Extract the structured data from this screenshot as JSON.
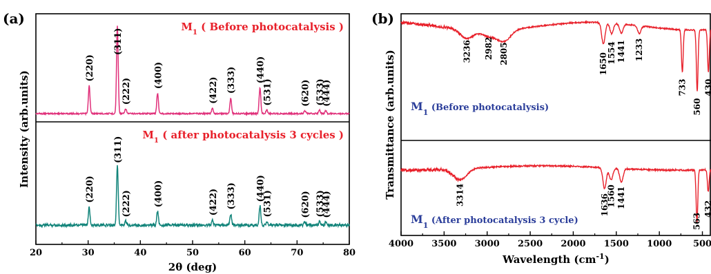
{
  "chart_data": [
    {
      "type": "line",
      "panel_label": "(a)",
      "xlabel": "2θ (deg)",
      "ylabel": "Intensity (arb.units)",
      "xlim": [
        20,
        80
      ],
      "xticks": [
        "20",
        "30",
        "40",
        "50",
        "60",
        "70",
        "80"
      ],
      "grid": false,
      "series": [
        {
          "name": "M1 ( Before photocatalysis )",
          "label_main": "M",
          "label_sub": "1",
          "label_rest": " ( Before photocatalysis )",
          "color": "#e0307a",
          "peaks": [
            {
              "x": 30.2,
              "label": "(220)",
              "height": 0.3
            },
            {
              "x": 35.6,
              "label": "(311)",
              "height": 0.95
            },
            {
              "x": 37.2,
              "label": "(222)",
              "height": 0.05
            },
            {
              "x": 43.3,
              "label": "(400)",
              "height": 0.22
            },
            {
              "x": 53.8,
              "label": "(422)",
              "height": 0.06
            },
            {
              "x": 57.3,
              "label": "(333)",
              "height": 0.17
            },
            {
              "x": 62.9,
              "label": "(440)",
              "height": 0.28
            },
            {
              "x": 64.2,
              "label": "(531)",
              "height": 0.04
            },
            {
              "x": 71.5,
              "label": "(620)",
              "height": 0.03
            },
            {
              "x": 74.3,
              "label": "(533)",
              "height": 0.04
            },
            {
              "x": 75.5,
              "label": "(444)",
              "height": 0.03
            }
          ]
        },
        {
          "name": "M1 ( after photocatalysis 3 cycles )",
          "label_main": "M",
          "label_sub": "1",
          "label_rest": " ( after photocatalysis 3 cycles )",
          "color": "#12847a",
          "peaks": [
            {
              "x": 30.2,
              "label": "(220)",
              "height": 0.24
            },
            {
              "x": 35.6,
              "label": "(311)",
              "height": 0.8
            },
            {
              "x": 37.2,
              "label": "(222)",
              "height": 0.05
            },
            {
              "x": 43.3,
              "label": "(400)",
              "height": 0.18
            },
            {
              "x": 53.8,
              "label": "(422)",
              "height": 0.07
            },
            {
              "x": 57.3,
              "label": "(333)",
              "height": 0.15
            },
            {
              "x": 62.9,
              "label": "(440)",
              "height": 0.25
            },
            {
              "x": 64.2,
              "label": "(531)",
              "height": 0.05
            },
            {
              "x": 71.5,
              "label": "(620)",
              "height": 0.04
            },
            {
              "x": 74.3,
              "label": "(533)",
              "height": 0.05
            },
            {
              "x": 75.5,
              "label": "(444)",
              "height": 0.04
            }
          ]
        }
      ]
    },
    {
      "type": "line",
      "panel_label": "(b)",
      "xlabel_main": "Wavelength (cm",
      "xlabel_sup": "-1",
      "xlabel_end": ")",
      "ylabel": "Transmittance (arb.units)",
      "xlim": [
        4000,
        400
      ],
      "xticks": [
        "4000",
        "3500",
        "3000",
        "2500",
        "2000",
        "1500",
        "1000",
        "500"
      ],
      "grid": false,
      "series": [
        {
          "name": "M1 (Before photocatalysis)",
          "label_main": "M",
          "label_sub": "1",
          "label_rest": " (Before photocatalysis)",
          "color": "#e8202a",
          "bands": [
            {
              "x": 3236,
              "label": "3236",
              "depth": 0.12
            },
            {
              "x": 2982,
              "label": "2982",
              "depth": 0.08
            },
            {
              "x": 2805,
              "label": "2805",
              "depth": 0.15
            },
            {
              "x": 1650,
              "label": "1650",
              "depth": 0.28
            },
            {
              "x": 1554,
              "label": "1554",
              "depth": 0.14
            },
            {
              "x": 1441,
              "label": "1441",
              "depth": 0.12
            },
            {
              "x": 1233,
              "label": "1233",
              "depth": 0.1
            },
            {
              "x": 733,
              "label": "733",
              "depth": 0.55
            },
            {
              "x": 560,
              "label": "560",
              "depth": 0.8
            },
            {
              "x": 430,
              "label": "430",
              "depth": 0.55
            }
          ]
        },
        {
          "name": "M1 (After photocatalysis 3 cycle)",
          "label_main": "M",
          "label_sub": "1",
          "label_rest": "  (After photocatalysis 3 cycle)",
          "color": "#e8202a",
          "bands": [
            {
              "x": 3314,
              "label": "3314",
              "depth": 0.2
            },
            {
              "x": 1636,
              "label": "1636",
              "depth": 0.38
            },
            {
              "x": 1560,
              "label": "1560",
              "depth": 0.22
            },
            {
              "x": 1441,
              "label": "1441",
              "depth": 0.25
            },
            {
              "x": 563,
              "label": "563",
              "depth": 0.95
            },
            {
              "x": 432,
              "label": "432",
              "depth": 0.4
            }
          ]
        }
      ]
    }
  ]
}
